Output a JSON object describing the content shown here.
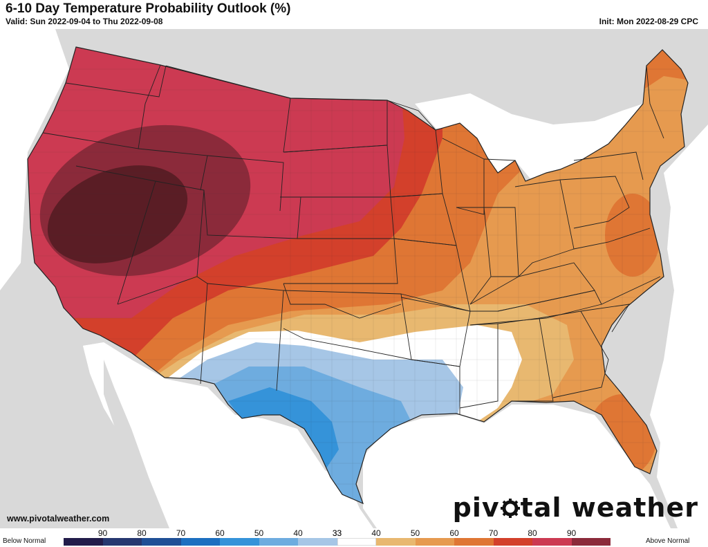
{
  "header": {
    "title": "6-10 Day Temperature Probability Outlook (%)",
    "valid": "Valid: Sun 2022-09-04 to Thu 2022-09-08",
    "init": "Init: Mon 2022-08-29 CPC"
  },
  "footer": {
    "url": "www.pivotalweather.com",
    "logo_left": "piv",
    "logo_right": "tal weather"
  },
  "legend": {
    "below_label": "Below Normal",
    "above_label": "Above Normal",
    "bins": [
      {
        "label": "90",
        "color": "#221c4a"
      },
      {
        "label": "80",
        "color": "#263870"
      },
      {
        "label": "70",
        "color": "#1f4f96"
      },
      {
        "label": "60",
        "color": "#1c6fc0"
      },
      {
        "label": "50",
        "color": "#3593d9"
      },
      {
        "label": "40",
        "color": "#6eacdf"
      },
      {
        "label": "33",
        "color": "#a6c6e6"
      },
      {
        "label": "33",
        "color": "#ffffff"
      },
      {
        "label": "40",
        "color": "#e8b870"
      },
      {
        "label": "50",
        "color": "#e69a4f"
      },
      {
        "label": "60",
        "color": "#df7634"
      },
      {
        "label": "70",
        "color": "#d3402b"
      },
      {
        "label": "80",
        "color": "#cc3a52"
      },
      {
        "label": "90",
        "color": "#8b2a3a"
      }
    ],
    "max_color": "#5a1d25"
  },
  "map": {
    "land_color": "#d9d9d9",
    "water_color": "#ffffff",
    "us_base_color": "#e69a4f"
  }
}
